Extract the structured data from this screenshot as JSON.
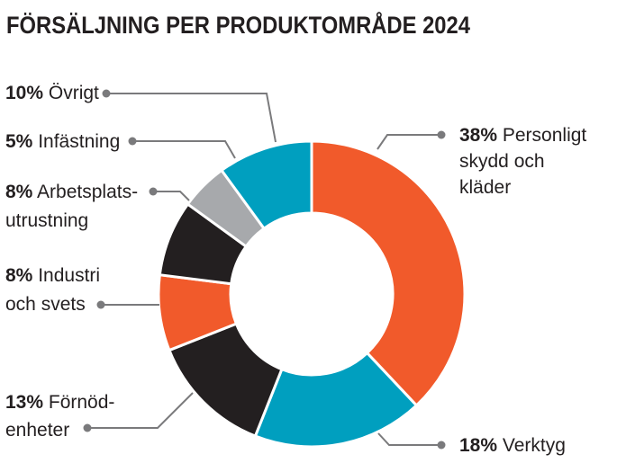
{
  "chart_data": {
    "type": "pie",
    "variant": "donut",
    "title": "FÖRSÄLJNING PER PRODUKTOMRÅDE 2024",
    "unit": "%",
    "slices": [
      {
        "pct": "38%",
        "label": [
          "Personligt",
          "skydd och",
          "kläder"
        ],
        "value": 38,
        "color": "#f15a2b"
      },
      {
        "pct": "18%",
        "label": [
          "Verktyg"
        ],
        "value": 18,
        "color": "#009fbf"
      },
      {
        "pct": "13%",
        "label": [
          "Förnöd-",
          "enheter"
        ],
        "value": 13,
        "color": "#231f20"
      },
      {
        "pct": "8%",
        "label": [
          "Industri",
          "och svets"
        ],
        "value": 8,
        "color": "#f15a2b"
      },
      {
        "pct": "8%",
        "label": [
          "Arbetsplats-",
          "utrustning"
        ],
        "value": 8,
        "color": "#231f20"
      },
      {
        "pct": "5%",
        "label": [
          "Infästning"
        ],
        "value": 5,
        "color": "#a7a9ac"
      },
      {
        "pct": "10%",
        "label": [
          "Övrigt"
        ],
        "value": 10,
        "color": "#009fbf"
      }
    ]
  }
}
